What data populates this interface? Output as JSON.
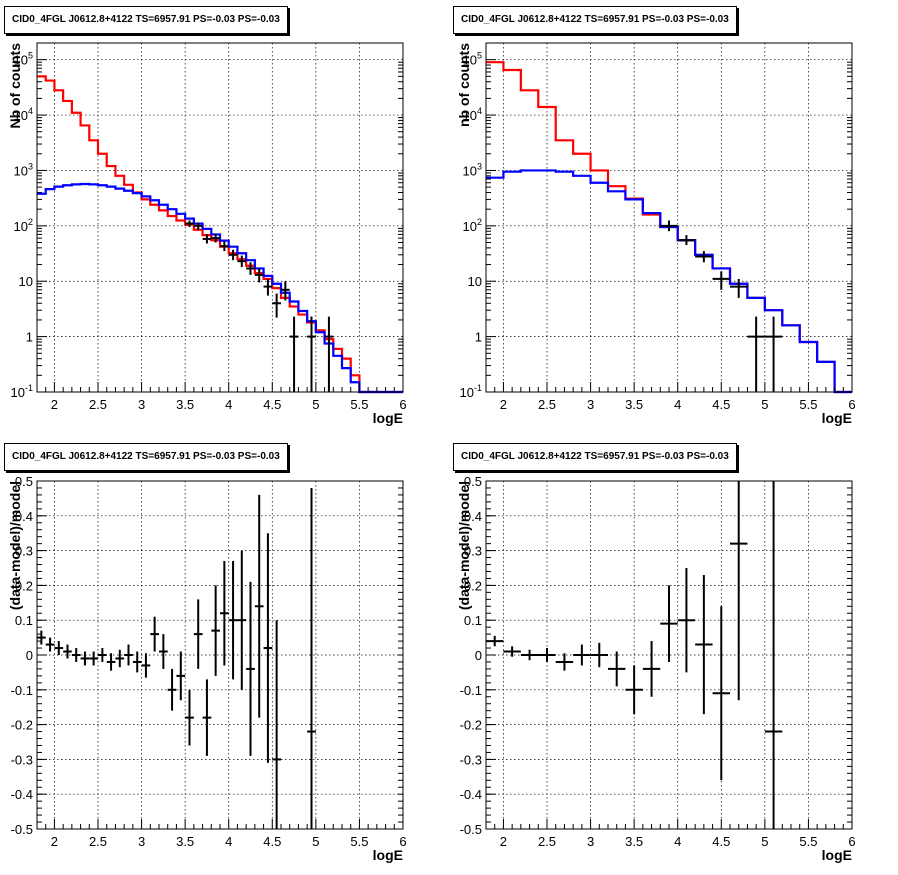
{
  "panels": [
    {
      "title": "CID0_4FGL J0612.8+4122 TS=6957.91 PS=-0.03 PS=-0.03",
      "xlabel": "logE",
      "ylabel": "Nb of counts"
    },
    {
      "title": "CID0_4FGL J0612.8+4122 TS=6957.91 PS=-0.03 PS=-0.03",
      "xlabel": "logE",
      "ylabel": "nb of counts"
    },
    {
      "title": "CID0_4FGL J0612.8+4122 TS=6957.91 PS=-0.03 PS=-0.03",
      "xlabel": "logE",
      "ylabel": "(data-model)/model"
    },
    {
      "title": "CID0_4FGL J0612.8+4122 TS=6957.91 PS=-0.03 PS=-0.03",
      "xlabel": "logE",
      "ylabel": "(data-model)/model"
    }
  ],
  "chart_data": [
    {
      "type": "line",
      "title": "CID0_4FGL J0612.8+4122 TS=6957.91 PS=-0.03 PS=-0.03",
      "xlabel": "logE",
      "ylabel": "Nb of counts",
      "xlim": [
        1.8,
        6.0
      ],
      "ylim": [
        0.1,
        200000
      ],
      "yscale": "log",
      "grid": true,
      "xticks": [
        "2",
        "2.5",
        "3",
        "3.5",
        "4",
        "4.5",
        "5",
        "5.5",
        "6"
      ],
      "yticks": [
        "10^-1",
        "1",
        "10",
        "10^2",
        "10^3",
        "10^4",
        "10^5"
      ],
      "bin_edges": [
        1.8,
        1.9,
        2.0,
        2.1,
        2.2,
        2.3,
        2.4,
        2.5,
        2.6,
        2.7,
        2.8,
        2.9,
        3.0,
        3.1,
        3.2,
        3.3,
        3.4,
        3.5,
        3.6,
        3.7,
        3.8,
        3.9,
        4.0,
        4.1,
        4.2,
        4.3,
        4.4,
        4.5,
        4.6,
        4.7,
        4.8,
        4.9,
        5.0,
        5.1,
        5.2,
        5.3,
        5.4,
        5.5,
        5.6,
        5.7,
        5.8,
        5.9,
        6.0
      ],
      "series": [
        {
          "color": "#ff0000",
          "values": [
            50000,
            42000,
            28000,
            18000,
            11000,
            6500,
            3500,
            2000,
            1200,
            800,
            550,
            400,
            300,
            240,
            190,
            150,
            125,
            105,
            85,
            68,
            55,
            42,
            32,
            25,
            19,
            14,
            11,
            7.5,
            5,
            3.5,
            2.5,
            1.8,
            1.3,
            0.9,
            0.6,
            0.4,
            0.2,
            0.1,
            0.1,
            0.1,
            0.1,
            0.1
          ]
        },
        {
          "color": "#0000ff",
          "values": [
            380,
            460,
            510,
            540,
            560,
            570,
            560,
            540,
            510,
            470,
            430,
            390,
            340,
            290,
            240,
            200,
            165,
            135,
            110,
            88,
            70,
            54,
            42,
            32,
            24,
            17,
            12.5,
            9,
            6.2,
            4.3,
            2.9,
            1.9,
            1.2,
            0.75,
            0.45,
            0.27,
            0.15,
            0.1,
            0.1,
            0.1,
            0.1,
            0.1
          ]
        }
      ],
      "points": [
        {
          "x": 3.55,
          "y": 110,
          "lo": 95,
          "hi": 125
        },
        {
          "x": 3.65,
          "y": 100,
          "lo": 85,
          "hi": 115
        },
        {
          "x": 3.75,
          "y": 58,
          "lo": 48,
          "hi": 70
        },
        {
          "x": 3.85,
          "y": 60,
          "lo": 50,
          "hi": 72
        },
        {
          "x": 3.95,
          "y": 43,
          "lo": 35,
          "hi": 52
        },
        {
          "x": 4.05,
          "y": 30,
          "lo": 24,
          "hi": 37
        },
        {
          "x": 4.15,
          "y": 23,
          "lo": 18,
          "hi": 29
        },
        {
          "x": 4.25,
          "y": 17,
          "lo": 13,
          "hi": 22
        },
        {
          "x": 4.35,
          "y": 13,
          "lo": 9.5,
          "hi": 17
        },
        {
          "x": 4.45,
          "y": 8,
          "lo": 5.5,
          "hi": 11
        },
        {
          "x": 4.55,
          "y": 4,
          "lo": 2.2,
          "hi": 6
        },
        {
          "x": 4.65,
          "y": 7,
          "lo": 4.5,
          "hi": 10
        },
        {
          "x": 4.75,
          "y": 1,
          "lo": 0.1,
          "hi": 2.3
        },
        {
          "x": 4.95,
          "y": 1,
          "lo": 0.1,
          "hi": 2.3
        },
        {
          "x": 5.15,
          "y": 1,
          "lo": 0.1,
          "hi": 2.3
        }
      ]
    },
    {
      "type": "line",
      "title": "CID0_4FGL J0612.8+4122 TS=6957.91 PS=-0.03 PS=-0.03",
      "xlabel": "logE",
      "ylabel": "nb of counts",
      "xlim": [
        1.8,
        6.0
      ],
      "ylim": [
        0.1,
        200000
      ],
      "yscale": "log",
      "grid": true,
      "xticks": [
        "2",
        "2.5",
        "3",
        "3.5",
        "4",
        "4.5",
        "5",
        "5.5",
        "6"
      ],
      "yticks": [
        "10^-1",
        "1",
        "10",
        "10^2",
        "10^3",
        "10^4",
        "10^5"
      ],
      "bin_edges": [
        1.8,
        2.0,
        2.2,
        2.4,
        2.6,
        2.8,
        3.0,
        3.2,
        3.4,
        3.6,
        3.8,
        4.0,
        4.2,
        4.4,
        4.6,
        4.8,
        5.0,
        5.2,
        5.4,
        5.6,
        5.8,
        6.0
      ],
      "series": [
        {
          "color": "#ff0000",
          "values": [
            90000,
            65000,
            28000,
            14000,
            3500,
            2000,
            1000,
            520,
            310,
            160,
            95,
            55,
            30,
            17,
            9,
            5,
            3,
            1.6,
            0.8,
            0.35,
            0.1
          ]
        },
        {
          "color": "#0000ff",
          "values": [
            740,
            950,
            1000,
            1000,
            950,
            800,
            600,
            420,
            300,
            170,
            95,
            55,
            30,
            17,
            9,
            5,
            3,
            1.6,
            0.8,
            0.35,
            0.1
          ]
        }
      ],
      "points": [
        {
          "x": 3.9,
          "y": 100,
          "lo": 80,
          "hi": 125
        },
        {
          "x": 4.1,
          "y": 55,
          "lo": 45,
          "hi": 68
        },
        {
          "x": 4.3,
          "y": 28,
          "lo": 22,
          "hi": 35
        },
        {
          "x": 4.5,
          "y": 11,
          "lo": 7,
          "hi": 15
        },
        {
          "x": 4.7,
          "y": 8,
          "lo": 5,
          "hi": 11
        },
        {
          "x": 4.9,
          "y": 1,
          "lo": 0.1,
          "hi": 2.3
        },
        {
          "x": 5.1,
          "y": 1,
          "lo": 0.1,
          "hi": 2.3
        }
      ]
    },
    {
      "type": "scatter",
      "title": "CID0_4FGL J0612.8+4122 TS=6957.91 PS=-0.03 PS=-0.03",
      "xlabel": "logE",
      "ylabel": "(data-model)/model",
      "xlim": [
        1.8,
        6.0
      ],
      "ylim": [
        -0.5,
        0.5
      ],
      "grid": true,
      "xticks": [
        "2",
        "2.5",
        "3",
        "3.5",
        "4",
        "4.5",
        "5",
        "5.5",
        "6"
      ],
      "yticks": [
        "-0.5",
        "-0.4",
        "-0.3",
        "-0.2",
        "-0.1",
        "0",
        "0.1",
        "0.2",
        "0.3",
        "0.4",
        "0.5"
      ],
      "points": [
        {
          "x": 1.85,
          "y": 0.05,
          "err": 0.02
        },
        {
          "x": 1.95,
          "y": 0.03,
          "err": 0.02
        },
        {
          "x": 2.05,
          "y": 0.02,
          "err": 0.02
        },
        {
          "x": 2.15,
          "y": 0.01,
          "err": 0.02
        },
        {
          "x": 2.25,
          "y": 0.0,
          "err": 0.02
        },
        {
          "x": 2.35,
          "y": -0.01,
          "err": 0.02
        },
        {
          "x": 2.45,
          "y": -0.01,
          "err": 0.02
        },
        {
          "x": 2.55,
          "y": 0.0,
          "err": 0.02
        },
        {
          "x": 2.65,
          "y": -0.02,
          "err": 0.025
        },
        {
          "x": 2.75,
          "y": -0.01,
          "err": 0.025
        },
        {
          "x": 2.85,
          "y": 0.0,
          "err": 0.03
        },
        {
          "x": 2.95,
          "y": -0.02,
          "err": 0.03
        },
        {
          "x": 3.05,
          "y": -0.03,
          "err": 0.035
        },
        {
          "x": 3.15,
          "y": 0.06,
          "err": 0.05
        },
        {
          "x": 3.25,
          "y": 0.01,
          "err": 0.05
        },
        {
          "x": 3.35,
          "y": -0.1,
          "err": 0.06
        },
        {
          "x": 3.45,
          "y": -0.06,
          "err": 0.07
        },
        {
          "x": 3.55,
          "y": -0.18,
          "err": 0.08
        },
        {
          "x": 3.65,
          "y": 0.06,
          "err": 0.1
        },
        {
          "x": 3.75,
          "y": -0.18,
          "err": 0.11
        },
        {
          "x": 3.85,
          "y": 0.07,
          "err": 0.13
        },
        {
          "x": 3.95,
          "y": 0.12,
          "err": 0.15
        },
        {
          "x": 4.05,
          "y": 0.1,
          "err": 0.17
        },
        {
          "x": 4.15,
          "y": 0.1,
          "err": 0.2
        },
        {
          "x": 4.25,
          "y": -0.04,
          "err": 0.25
        },
        {
          "x": 4.35,
          "y": 0.14,
          "err": 0.32
        },
        {
          "x": 4.45,
          "y": 0.02,
          "err": 0.33
        },
        {
          "x": 4.55,
          "y": -0.3,
          "err": 0.4
        },
        {
          "x": 4.95,
          "y": -0.22,
          "err": 0.7
        }
      ]
    },
    {
      "type": "scatter",
      "title": "CID0_4FGL J0612.8+4122 TS=6957.91 PS=-0.03 PS=-0.03",
      "xlabel": "logE",
      "ylabel": "(data-model)/model",
      "xlim": [
        1.8,
        6.0
      ],
      "ylim": [
        -0.5,
        0.5
      ],
      "grid": true,
      "xticks": [
        "2",
        "2.5",
        "3",
        "3.5",
        "4",
        "4.5",
        "5",
        "5.5",
        "6"
      ],
      "yticks": [
        "-0.5",
        "-0.4",
        "-0.3",
        "-0.2",
        "-0.1",
        "0",
        "0.1",
        "0.2",
        "0.3",
        "0.4",
        "0.5"
      ],
      "points": [
        {
          "x": 1.9,
          "y": 0.04,
          "err": 0.015
        },
        {
          "x": 2.1,
          "y": 0.01,
          "err": 0.015
        },
        {
          "x": 2.3,
          "y": 0.0,
          "err": 0.015
        },
        {
          "x": 2.5,
          "y": 0.0,
          "err": 0.02
        },
        {
          "x": 2.7,
          "y": -0.02,
          "err": 0.025
        },
        {
          "x": 2.9,
          "y": 0.0,
          "err": 0.03
        },
        {
          "x": 3.1,
          "y": 0.0,
          "err": 0.035
        },
        {
          "x": 3.3,
          "y": -0.04,
          "err": 0.05
        },
        {
          "x": 3.5,
          "y": -0.1,
          "err": 0.07
        },
        {
          "x": 3.7,
          "y": -0.04,
          "err": 0.08
        },
        {
          "x": 3.9,
          "y": 0.09,
          "err": 0.11
        },
        {
          "x": 4.1,
          "y": 0.1,
          "err": 0.15
        },
        {
          "x": 4.3,
          "y": 0.03,
          "err": 0.2
        },
        {
          "x": 4.5,
          "y": -0.11,
          "err": 0.25
        },
        {
          "x": 4.7,
          "y": 0.32,
          "err": 0.45
        },
        {
          "x": 5.1,
          "y": -0.22,
          "err": 0.8
        }
      ]
    }
  ]
}
